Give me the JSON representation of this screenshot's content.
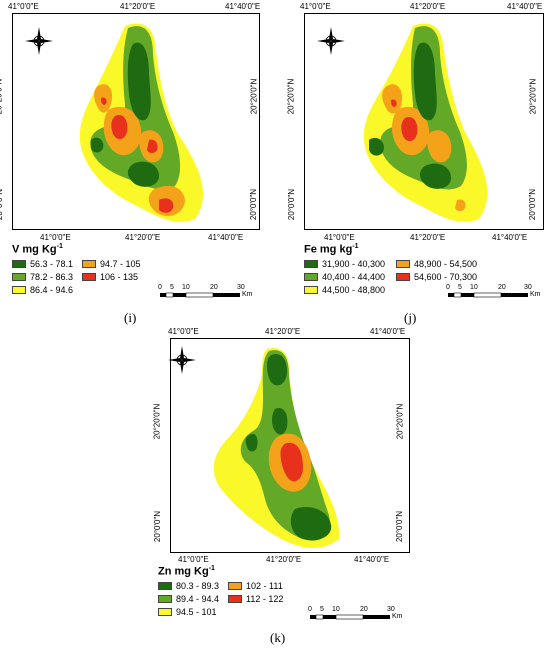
{
  "panels": [
    {
      "id": "i",
      "caption": "(i)",
      "coords": {
        "top_left": "41°0'0\"E",
        "top_mid": "41°20'0\"E",
        "top_right": "41°40'0\"E",
        "bottom_left": "41°0'0\"E",
        "bottom_mid": "41°20'0\"E",
        "bottom_right": "41°40'0\"E",
        "lat_upper": "20°20'0\"N",
        "lat_lower": "20°0'0\"N"
      },
      "legend": {
        "title": "V mg Kg",
        "sup": "-1",
        "classes": [
          {
            "label": "56.3 - 78.1",
            "color": "#1e6b12"
          },
          {
            "label": "94.7 - 105",
            "color": "#f5a21b"
          },
          {
            "label": "78.2 - 86.3",
            "color": "#63a827"
          },
          {
            "label": "106 - 135",
            "color": "#e8311c"
          },
          {
            "label": "86.4 - 94.6",
            "color": "#fbf82a"
          }
        ]
      },
      "scale": {
        "ticks": [
          "0",
          "5",
          "10",
          "20",
          "30"
        ],
        "unit": "Km"
      }
    },
    {
      "id": "j",
      "caption": "(j)",
      "coords": {
        "top_left": "41°0'0\"E",
        "top_mid": "41°20'0\"E",
        "top_right": "41°40'0\"E",
        "bottom_left": "41°0'0\"E",
        "bottom_mid": "41°20'0\"E",
        "bottom_right": "41°40'0\"E",
        "lat_upper": "20°20'0\"N",
        "lat_lower": "20°0'0\"N"
      },
      "legend": {
        "title": "Fe mg kg",
        "sup": "-1",
        "classes": [
          {
            "label": "31,900 - 40,300",
            "color": "#1e6b12"
          },
          {
            "label": "48,900 - 54,500",
            "color": "#f5a21b"
          },
          {
            "label": "40,400 - 44,400",
            "color": "#63a827"
          },
          {
            "label": "54,600 - 70,300",
            "color": "#e8311c"
          },
          {
            "label": "44,500 - 48,800",
            "color": "#fbf82a"
          }
        ]
      },
      "scale": {
        "ticks": [
          "0",
          "5",
          "10",
          "20",
          "30"
        ],
        "unit": "Km"
      }
    },
    {
      "id": "k",
      "caption": "(k)",
      "coords": {
        "top_left": "41°0'0\"E",
        "top_mid": "41°20'0\"E",
        "top_right": "41°40'0\"E",
        "bottom_left": "41°0'0\"E",
        "bottom_mid": "41°20'0\"E",
        "bottom_right": "41°40'0\"E",
        "lat_upper": "20°20'0\"N",
        "lat_lower": "20°0'0\"N"
      },
      "legend": {
        "title": "Zn mg Kg",
        "sup": "-1",
        "classes": [
          {
            "label": "80.3 - 89.3",
            "color": "#1e6b12"
          },
          {
            "label": "102 - 111",
            "color": "#f5a21b"
          },
          {
            "label": "89.4 - 94.4",
            "color": "#63a827"
          },
          {
            "label": "112 - 122",
            "color": "#e8311c"
          },
          {
            "label": "94.5 - 101",
            "color": "#fbf82a"
          }
        ]
      },
      "scale": {
        "ticks": [
          "0",
          "5",
          "10",
          "20",
          "30"
        ],
        "unit": "Km"
      }
    }
  ],
  "north_arrow": {
    "n": "N",
    "e": "E",
    "s": "S",
    "w": "W",
    "icon": "compass-rose-icon"
  }
}
